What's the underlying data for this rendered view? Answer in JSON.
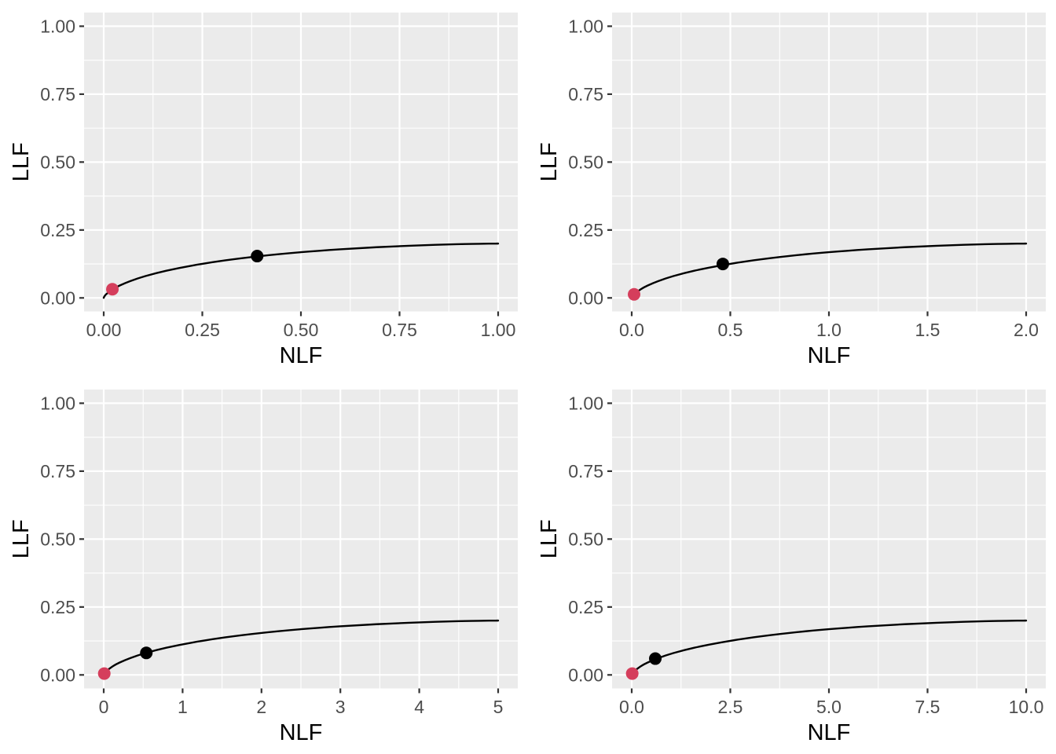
{
  "figure": {
    "background_color": "#FFFFFF",
    "panel_background_color": "#EBEBEB",
    "grid_major_color": "#FFFFFF",
    "grid_minor_color": "#FFFFFF",
    "tick_mark_color": "#333333",
    "tick_label_color": "#4D4D4D",
    "axis_title_color": "#000000",
    "curve_color": "#000000",
    "operating_point_color": "#000000",
    "end_point_color": "#D53E5C"
  },
  "chart_data": {
    "type": "line",
    "layout": "2x2 panel grid",
    "description": "FROC curves: LLF vs NLF, curve plateau at LLF = 0.2, with a black operating point and a red end point on each curve",
    "curve_llf_values": [
      0.0003,
      0.0046,
      0.0134,
      0.0317,
      0.0453,
      0.0617,
      0.0803,
      0.1,
      0.1197,
      0.1383,
      0.1547,
      0.1683,
      0.1789,
      0.1866,
      0.192,
      0.1955,
      0.1976,
      0.1988,
      0.1997,
      0.1999,
      0.2,
      0.2
    ],
    "panels": [
      {
        "xlabel": "NLF",
        "ylabel": "LLF",
        "xlim": [
          0,
          1
        ],
        "ylim": [
          0,
          1
        ],
        "x_tick_values": [
          0,
          0.25,
          0.5,
          0.75,
          1.0
        ],
        "x_tick_labels": [
          "0.00",
          "0.25",
          "0.50",
          "0.75",
          "1.00"
        ],
        "x_minor_values": [
          0.125,
          0.375,
          0.625,
          0.875
        ],
        "y_tick_values": [
          0,
          0.25,
          0.5,
          0.75,
          1.0
        ],
        "y_tick_labels": [
          "0.00",
          "0.25",
          "0.50",
          "0.75",
          "1.00"
        ],
        "y_minor_values": [
          0.125,
          0.375,
          0.625,
          0.875
        ],
        "curve_nlf_values": [
          0.0,
          0.0014,
          0.0062,
          0.0228,
          0.0401,
          0.0668,
          0.1057,
          0.1587,
          0.2266,
          0.3085,
          0.4013,
          0.5,
          0.5987,
          0.6915,
          0.7734,
          0.8413,
          0.8944,
          0.9332,
          0.9772,
          0.9938,
          0.9987,
          1.0
        ],
        "points": [
          {
            "name": "operating-point",
            "x": 0.389,
            "y": 0.154,
            "color": "#000000"
          },
          {
            "name": "end-point",
            "x": 0.022,
            "y": 0.032,
            "color": "#D53E5C"
          }
        ]
      },
      {
        "xlabel": "NLF",
        "ylabel": "LLF",
        "xlim": [
          0,
          2
        ],
        "ylim": [
          0,
          1
        ],
        "x_tick_values": [
          0,
          0.5,
          1.0,
          1.5,
          2.0
        ],
        "x_tick_labels": [
          "0.0",
          "0.5",
          "1.0",
          "1.5",
          "2.0"
        ],
        "x_minor_values": [
          0.25,
          0.75,
          1.25,
          1.75
        ],
        "y_tick_values": [
          0,
          0.25,
          0.5,
          0.75,
          1.0
        ],
        "y_tick_labels": [
          "0.00",
          "0.25",
          "0.50",
          "0.75",
          "1.00"
        ],
        "y_minor_values": [
          0.125,
          0.375,
          0.625,
          0.875
        ],
        "curve_nlf_values": [
          0.0001,
          0.0027,
          0.0124,
          0.0455,
          0.0801,
          0.1336,
          0.2113,
          0.3173,
          0.4533,
          0.6171,
          0.8026,
          1.0,
          1.1974,
          1.3829,
          1.5467,
          1.6827,
          1.7887,
          1.8664,
          1.9545,
          1.9876,
          1.9973,
          2.0
        ],
        "points": [
          {
            "name": "operating-point",
            "x": 0.462,
            "y": 0.125,
            "color": "#000000"
          },
          {
            "name": "end-point",
            "x": 0.012,
            "y": 0.013,
            "color": "#D53E5C"
          }
        ]
      },
      {
        "xlabel": "NLF",
        "ylabel": "LLF",
        "xlim": [
          0,
          5
        ],
        "ylim": [
          0,
          1
        ],
        "x_tick_values": [
          0,
          1,
          2,
          3,
          4,
          5
        ],
        "x_tick_labels": [
          "0",
          "1",
          "2",
          "3",
          "4",
          "5"
        ],
        "x_minor_values": [
          0.5,
          1.5,
          2.5,
          3.5,
          4.5
        ],
        "y_tick_values": [
          0,
          0.25,
          0.5,
          0.75,
          1.0
        ],
        "y_tick_labels": [
          "0.00",
          "0.25",
          "0.50",
          "0.75",
          "1.00"
        ],
        "y_minor_values": [
          0.125,
          0.375,
          0.625,
          0.875
        ],
        "curve_nlf_values": [
          0.0002,
          0.0068,
          0.0311,
          0.1138,
          0.2003,
          0.3341,
          0.5283,
          0.7933,
          1.1332,
          1.5427,
          2.0065,
          2.5,
          2.9936,
          3.4573,
          3.8669,
          4.2067,
          4.4718,
          4.666,
          4.8863,
          4.969,
          4.9933,
          5.0
        ],
        "points": [
          {
            "name": "operating-point",
            "x": 0.54,
            "y": 0.081,
            "color": "#000000"
          },
          {
            "name": "end-point",
            "x": 0.007,
            "y": 0.005,
            "color": "#D53E5C"
          }
        ]
      },
      {
        "xlabel": "NLF",
        "ylabel": "LLF",
        "xlim": [
          0,
          10
        ],
        "ylim": [
          0,
          1
        ],
        "x_tick_values": [
          0,
          2.5,
          5.0,
          7.5,
          10.0
        ],
        "x_tick_labels": [
          "0.0",
          "2.5",
          "5.0",
          "7.5",
          "10.0"
        ],
        "x_minor_values": [
          1.25,
          3.75,
          6.25,
          8.75
        ],
        "y_tick_values": [
          0,
          0.25,
          0.5,
          0.75,
          1.0
        ],
        "y_tick_labels": [
          "0.00",
          "0.25",
          "0.50",
          "0.75",
          "1.00"
        ],
        "y_minor_values": [
          0.125,
          0.375,
          0.625,
          0.875
        ],
        "curve_nlf_values": [
          0.0003,
          0.0135,
          0.0621,
          0.2275,
          0.4006,
          0.6681,
          1.0565,
          1.5866,
          2.2663,
          3.0854,
          4.0129,
          5.0,
          5.9871,
          6.9146,
          7.7337,
          8.4134,
          8.9435,
          9.3319,
          9.7725,
          9.9379,
          9.9865,
          10.0
        ],
        "points": [
          {
            "name": "operating-point",
            "x": 0.598,
            "y": 0.06,
            "color": "#000000"
          },
          {
            "name": "end-point",
            "x": 0.013,
            "y": 0.005,
            "color": "#D53E5C"
          }
        ]
      }
    ]
  }
}
